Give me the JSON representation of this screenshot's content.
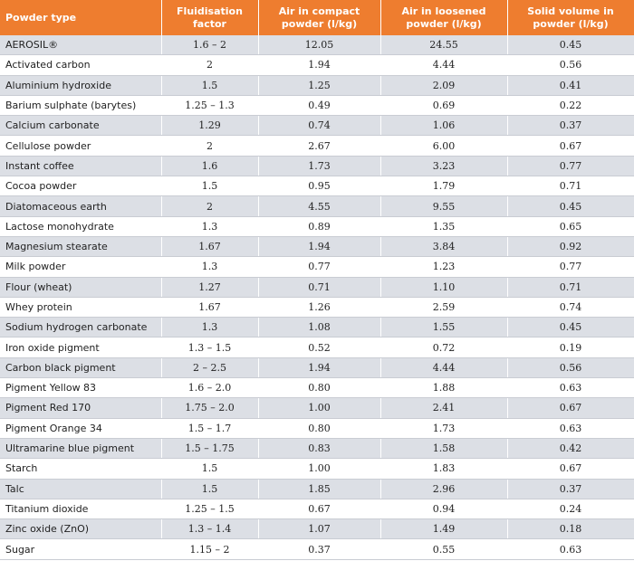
{
  "table": {
    "header": [
      "Powder type",
      "Fluidisation factor",
      "Air in compact powder (l/kg)",
      "Air in loosened powder (l/kg)",
      "Solid volume in powder (l/kg)"
    ],
    "rows": [
      [
        "AEROSIL®",
        "1.6 – 2",
        "12.05",
        "24.55",
        "0.45"
      ],
      [
        "Activated carbon",
        "2",
        "1.94",
        "4.44",
        "0.56"
      ],
      [
        "Aluminium hydroxide",
        "1.5",
        "1.25",
        "2.09",
        "0.41"
      ],
      [
        "Barium sulphate (barytes)",
        "1.25 – 1.3",
        "0.49",
        "0.69",
        "0.22"
      ],
      [
        "Calcium carbonate",
        "1.29",
        "0.74",
        "1.06",
        "0.37"
      ],
      [
        "Cellulose powder",
        "2",
        "2.67",
        "6.00",
        "0.67"
      ],
      [
        "Instant coffee",
        "1.6",
        "1.73",
        "3.23",
        "0.77"
      ],
      [
        "Cocoa powder",
        "1.5",
        "0.95",
        "1.79",
        "0.71"
      ],
      [
        "Diatomaceous earth",
        "2",
        "4.55",
        "9.55",
        "0.45"
      ],
      [
        "Lactose monohydrate",
        "1.3",
        "0.89",
        "1.35",
        "0.65"
      ],
      [
        "Magnesium stearate",
        "1.67",
        "1.94",
        "3.84",
        "0.92"
      ],
      [
        "Milk powder",
        "1.3",
        "0.77",
        "1.23",
        "0.77"
      ],
      [
        "Flour (wheat)",
        "1.27",
        "0.71",
        "1.10",
        "0.71"
      ],
      [
        "Whey protein",
        "1.67",
        "1.26",
        "2.59",
        "0.74"
      ],
      [
        "Sodium hydrogen carbonate",
        "1.3",
        "1.08",
        "1.55",
        "0.45"
      ],
      [
        "Iron oxide pigment",
        "1.3 – 1.5",
        "0.52",
        "0.72",
        "0.19"
      ],
      [
        "Carbon black pigment",
        "2 – 2.5",
        "1.94",
        "4.44",
        "0.56"
      ],
      [
        "Pigment Yellow 83",
        "1.6 – 2.0",
        "0.80",
        "1.88",
        "0.63"
      ],
      [
        "Pigment Red 170",
        "1.75 – 2.0",
        "1.00",
        "2.41",
        "0.67"
      ],
      [
        "Pigment Orange 34",
        "1.5 – 1.7",
        "0.80",
        "1.73",
        "0.63"
      ],
      [
        "Ultramarine blue pigment",
        "1.5 – 1.75",
        "0.83",
        "1.58",
        "0.42"
      ],
      [
        "Starch",
        "1.5",
        "1.00",
        "1.83",
        "0.67"
      ],
      [
        "Talc",
        "1.5",
        "1.85",
        "2.96",
        "0.37"
      ],
      [
        "Titanium dioxide",
        "1.25 – 1.5",
        "0.67",
        "0.94",
        "0.24"
      ],
      [
        "Zinc oxide (ZnO)",
        "1.3 – 1.4",
        "1.07",
        "1.49",
        "0.18"
      ],
      [
        "Sugar",
        "1.15 – 2",
        "0.37",
        "0.55",
        "0.63"
      ]
    ]
  }
}
